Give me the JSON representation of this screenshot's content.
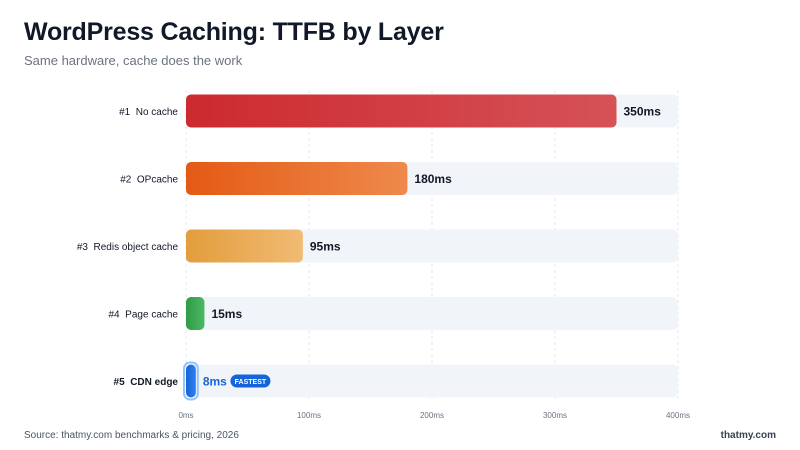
{
  "title": "WordPress Caching: TTFB by Layer",
  "subtitle": "Same hardware, cache does the work",
  "footer": {
    "source": "Source: thatmy.com benchmarks & pricing, 2026",
    "brand": "thatmy.com"
  },
  "chart_data": {
    "type": "bar",
    "orientation": "horizontal",
    "categories": [
      "#1  No cache",
      "#2  OPcache",
      "#3  Redis object cache",
      "#4  Page cache",
      "#5  CDN edge"
    ],
    "values": [
      350,
      180,
      95,
      15,
      8
    ],
    "value_labels": [
      "350ms",
      "180ms",
      "95ms",
      "15ms",
      "8ms"
    ],
    "xlim": [
      0,
      400
    ],
    "x_ticks": [
      0,
      100,
      200,
      300,
      400
    ],
    "x_tick_labels": [
      "0ms",
      "100ms",
      "200ms",
      "300ms",
      "400ms"
    ],
    "grid": true,
    "highlight": {
      "index": 4,
      "badge": "FASTEST"
    },
    "colors": [
      [
        "#cc2a2f",
        "#d55257"
      ],
      [
        "#e45a14",
        "#ee8a4c"
      ],
      [
        "#e39d3c",
        "#f0bb74"
      ],
      [
        "#2f9b48",
        "#4cb862"
      ],
      [
        "#1565d8",
        "#2f7ff0"
      ]
    ]
  }
}
